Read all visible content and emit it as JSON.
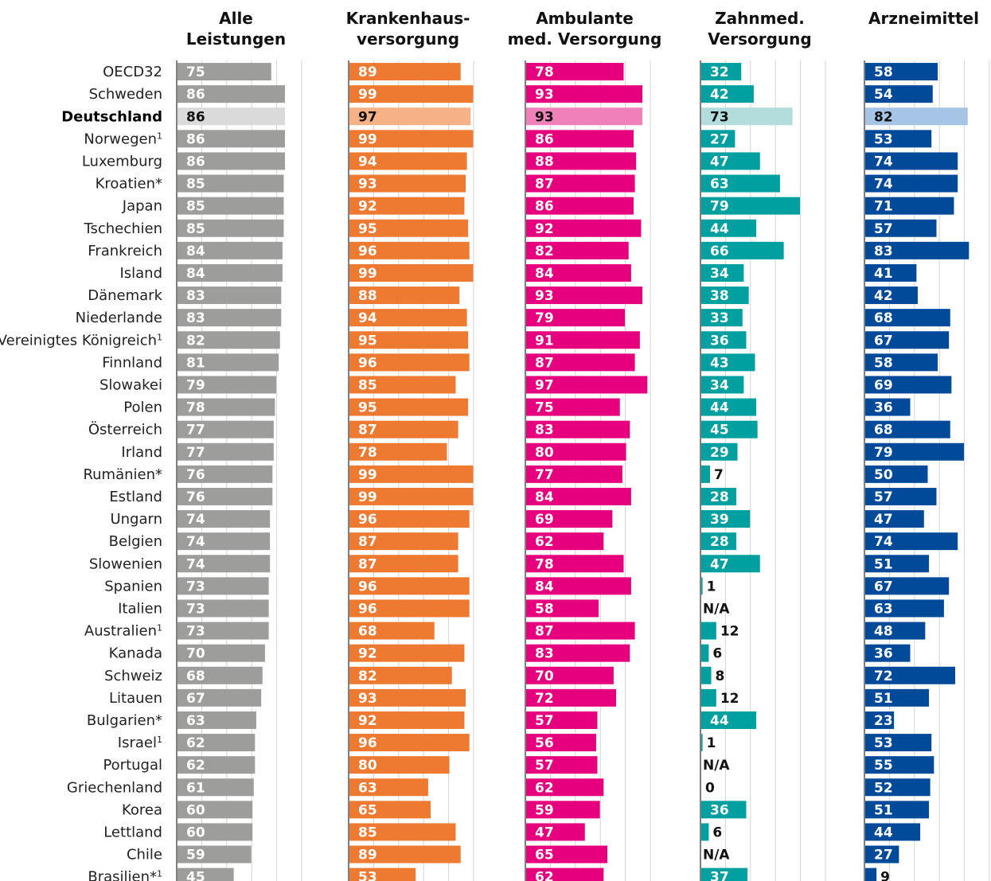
{
  "chart_data": {
    "type": "bar",
    "orientation": "horizontal",
    "title": "",
    "xlim": [
      0,
      100
    ],
    "grid": true,
    "highlight_category": "Deutschland",
    "categories": [
      "OECD32",
      "Schweden",
      "Deutschland",
      "Norwegen¹",
      "Luxemburg",
      "Kroatien*",
      "Japan",
      "Tschechien",
      "Frankreich",
      "Island",
      "Dänemark",
      "Niederlande",
      "Vereinigtes Königreich¹",
      "Finnland",
      "Slowakei",
      "Polen",
      "Österreich",
      "Irland",
      "Rumänien*",
      "Estland",
      "Ungarn",
      "Belgien",
      "Slowenien",
      "Spanien",
      "Italien",
      "Australien¹",
      "Kanada",
      "Schweiz",
      "Litauen",
      "Bulgarien*",
      "Israel¹",
      "Portugal",
      "Griechenland",
      "Korea",
      "Lettland",
      "Chile",
      "Brasilien*¹"
    ],
    "series": [
      {
        "name": "Alle Leistungen",
        "header": [
          "Alle",
          "Leistungen"
        ],
        "color": "#9d9d9c",
        "highlight_color": "#d9dad9",
        "values": [
          75,
          86,
          86,
          86,
          86,
          85,
          85,
          85,
          84,
          84,
          83,
          83,
          82,
          81,
          79,
          78,
          77,
          77,
          76,
          76,
          74,
          74,
          74,
          73,
          73,
          73,
          70,
          68,
          67,
          63,
          62,
          62,
          61,
          60,
          60,
          59,
          45
        ]
      },
      {
        "name": "Krankenhausversorgung",
        "header": [
          "Krankenhaus-",
          "versorgung"
        ],
        "color": "#ee7a32",
        "highlight_color": "#f6b286",
        "values": [
          89,
          99,
          97,
          99,
          94,
          93,
          92,
          95,
          96,
          99,
          88,
          94,
          95,
          96,
          85,
          95,
          87,
          78,
          99,
          99,
          96,
          87,
          87,
          96,
          96,
          68,
          92,
          82,
          93,
          92,
          96,
          80,
          63,
          65,
          85,
          89,
          53
        ]
      },
      {
        "name": "Ambulante med. Versorgung",
        "header": [
          "Ambulante",
          "med. Versorgung"
        ],
        "color": "#e6007e",
        "highlight_color": "#f080b9",
        "values": [
          78,
          93,
          93,
          86,
          88,
          87,
          86,
          92,
          82,
          84,
          93,
          79,
          91,
          87,
          97,
          75,
          83,
          80,
          77,
          84,
          69,
          62,
          78,
          84,
          58,
          87,
          83,
          70,
          72,
          57,
          56,
          57,
          62,
          59,
          47,
          65,
          62
        ]
      },
      {
        "name": "Zahnmed. Versorgung",
        "header": [
          "Zahnmed.",
          "Versorgung"
        ],
        "color": "#00a0a0",
        "highlight_color": "#b3dcdc",
        "values": [
          32,
          42,
          73,
          27,
          47,
          63,
          79,
          44,
          66,
          34,
          38,
          33,
          36,
          43,
          34,
          44,
          45,
          29,
          7,
          28,
          39,
          28,
          47,
          1,
          null,
          12,
          6,
          8,
          12,
          44,
          1,
          null,
          0,
          36,
          6,
          null,
          37
        ]
      },
      {
        "name": "Arzneimittel",
        "header": [
          "Arzneimittel",
          ""
        ],
        "color": "#004a99",
        "highlight_color": "#a6c4e6",
        "values": [
          58,
          54,
          82,
          53,
          74,
          74,
          71,
          57,
          83,
          41,
          42,
          68,
          67,
          58,
          69,
          36,
          68,
          79,
          50,
          57,
          47,
          74,
          51,
          67,
          63,
          48,
          36,
          72,
          51,
          23,
          53,
          55,
          52,
          51,
          44,
          27,
          9
        ]
      }
    ],
    "missing_label": "N/A"
  }
}
